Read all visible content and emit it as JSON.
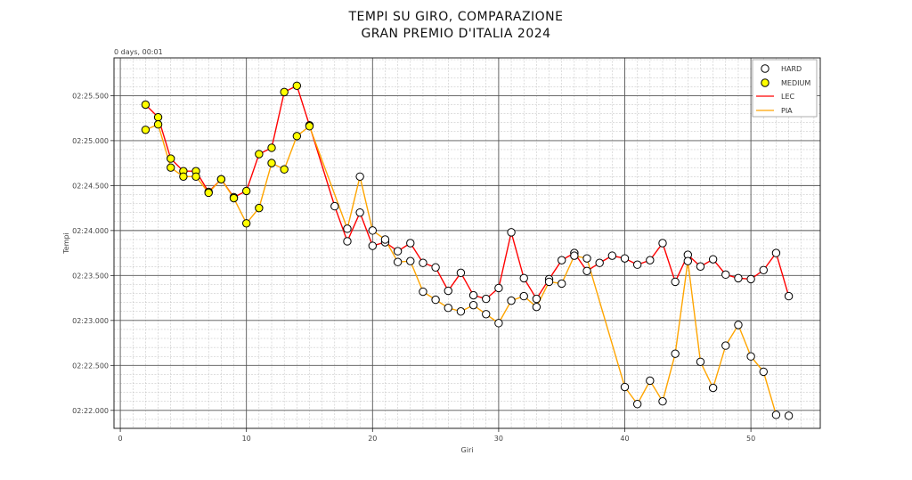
{
  "chart_data": {
    "type": "line",
    "title_line1": "TEMPI SU GIRO, COMPARAZIONE",
    "title_line2": "GRAN PREMIO D'ITALIA 2024",
    "xlabel": "Giri",
    "ylabel": "Tempi",
    "y_offset_label": "0 days, 00:01",
    "xlim": [
      -0.5,
      55.5
    ],
    "ylim": [
      21.8,
      25.92
    ],
    "x_ticks": [
      0,
      10,
      20,
      30,
      40,
      50
    ],
    "y_ticks": [
      22.0,
      22.5,
      23.0,
      23.5,
      24.0,
      24.5,
      25.0,
      25.5
    ],
    "y_tick_labels": [
      "02:22.000",
      "02:22.500",
      "02:23.000",
      "02:23.500",
      "02:24.000",
      "02:24.500",
      "02:25.000",
      "02:25.500"
    ],
    "grid": true,
    "legend_position": "top-right",
    "legend": [
      {
        "label": "HARD",
        "kind": "marker",
        "fill": "#ffffff"
      },
      {
        "label": "MEDIUM",
        "kind": "marker",
        "fill": "#ffff00"
      },
      {
        "label": "LEC",
        "kind": "line",
        "color": "#ff0000"
      },
      {
        "label": "PIA",
        "kind": "line",
        "color": "#ffa500"
      }
    ],
    "series": [
      {
        "name": "LEC",
        "color": "#ff0000",
        "x": [
          2,
          3,
          4,
          5,
          6,
          7,
          8,
          9,
          10,
          11,
          12,
          13,
          14,
          15,
          17,
          18,
          19,
          20,
          21,
          22,
          23,
          24,
          25,
          26,
          27,
          28,
          29,
          30,
          31,
          32,
          33,
          34,
          35,
          36,
          37,
          38,
          39,
          40,
          41,
          42,
          43,
          44,
          45,
          46,
          47,
          48,
          49,
          50,
          51,
          52,
          53
        ],
        "y": [
          25.4,
          25.26,
          24.8,
          24.66,
          24.66,
          24.43,
          24.57,
          24.37,
          24.44,
          24.85,
          24.92,
          25.54,
          25.61,
          25.17,
          24.27,
          23.88,
          24.2,
          23.83,
          23.87,
          23.77,
          23.86,
          23.64,
          23.59,
          23.33,
          23.53,
          23.28,
          23.24,
          23.36,
          23.98,
          23.47,
          23.24,
          23.46,
          23.67,
          23.75,
          23.55,
          23.64,
          23.72,
          23.69,
          23.62,
          23.67,
          23.86,
          23.43,
          23.73,
          23.6,
          23.68,
          23.51,
          23.47,
          23.46,
          23.56,
          23.75,
          23.27
        ],
        "compound": [
          "MEDIUM",
          "MEDIUM",
          "MEDIUM",
          "MEDIUM",
          "MEDIUM",
          "MEDIUM",
          "MEDIUM",
          "MEDIUM",
          "MEDIUM",
          "MEDIUM",
          "MEDIUM",
          "MEDIUM",
          "MEDIUM",
          "MEDIUM",
          "HARD",
          "HARD",
          "HARD",
          "HARD",
          "HARD",
          "HARD",
          "HARD",
          "HARD",
          "HARD",
          "HARD",
          "HARD",
          "HARD",
          "HARD",
          "HARD",
          "HARD",
          "HARD",
          "HARD",
          "HARD",
          "HARD",
          "HARD",
          "HARD",
          "HARD",
          "HARD",
          "HARD",
          "HARD",
          "HARD",
          "HARD",
          "HARD",
          "HARD",
          "HARD",
          "HARD",
          "HARD",
          "HARD",
          "HARD",
          "HARD",
          "HARD",
          "HARD"
        ]
      },
      {
        "name": "PIA",
        "color": "#ffa500",
        "x": [
          2,
          3,
          4,
          5,
          6,
          7,
          8,
          9,
          10,
          11,
          12,
          13,
          14,
          15,
          18,
          19,
          20,
          21,
          22,
          23,
          24,
          25,
          26,
          27,
          28,
          29,
          30,
          31,
          32,
          33,
          34,
          35,
          36,
          37,
          40,
          41,
          42,
          43,
          44,
          45,
          46,
          47,
          48,
          49,
          50,
          51,
          52
        ],
        "y": [
          25.12,
          25.18,
          24.7,
          24.6,
          24.6,
          24.42,
          24.57,
          24.36,
          24.08,
          24.25,
          24.75,
          24.68,
          25.05,
          25.16,
          24.02,
          24.6,
          24.0,
          23.9,
          23.65,
          23.66,
          23.32,
          23.23,
          23.14,
          23.1,
          23.17,
          23.07,
          22.97,
          23.22,
          23.27,
          23.15,
          23.43,
          23.41,
          23.72,
          23.69,
          22.26,
          22.07,
          22.33,
          22.1,
          22.63,
          23.66,
          22.54,
          22.25,
          22.72,
          22.95,
          22.6,
          22.43,
          21.95
        ],
        "compound": [
          "MEDIUM",
          "MEDIUM",
          "MEDIUM",
          "MEDIUM",
          "MEDIUM",
          "MEDIUM",
          "MEDIUM",
          "MEDIUM",
          "MEDIUM",
          "MEDIUM",
          "MEDIUM",
          "MEDIUM",
          "MEDIUM",
          "MEDIUM",
          "HARD",
          "HARD",
          "HARD",
          "HARD",
          "HARD",
          "HARD",
          "HARD",
          "HARD",
          "HARD",
          "HARD",
          "HARD",
          "HARD",
          "HARD",
          "HARD",
          "HARD",
          "HARD",
          "HARD",
          "HARD",
          "HARD",
          "HARD",
          "HARD",
          "HARD",
          "HARD",
          "HARD",
          "HARD",
          "HARD",
          "HARD",
          "HARD",
          "HARD",
          "HARD",
          "HARD",
          "HARD",
          "HARD"
        ]
      },
      {
        "name": "",
        "role": "extra-marker",
        "color": "#ffa500",
        "x": [
          53
        ],
        "y": [
          21.94
        ],
        "compound": [
          "HARD"
        ]
      }
    ]
  }
}
